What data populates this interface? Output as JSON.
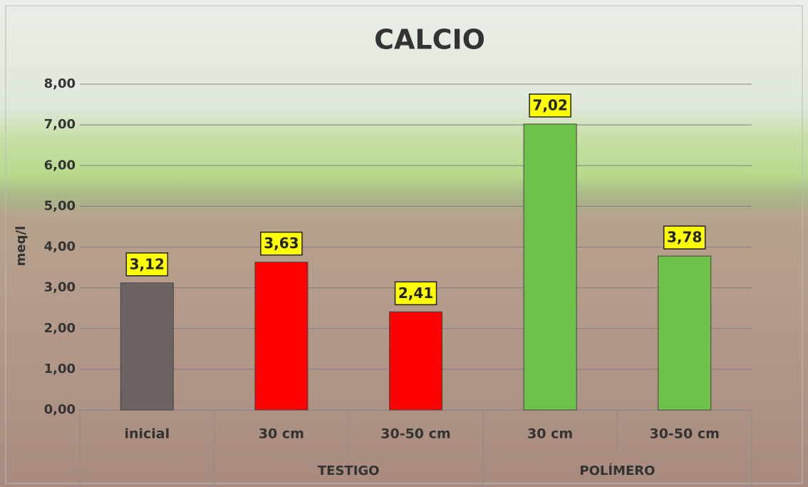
{
  "chart_data": {
    "type": "bar",
    "title": "CALCIO",
    "y_label": "meq/l",
    "categories": [
      "inicial",
      "30 cm",
      "30-50 cm",
      "30 cm",
      "30-50 cm"
    ],
    "groups": [
      null,
      "TESTIGO",
      "TESTIGO",
      "POLÍMERO",
      "POLÍMERO"
    ],
    "values": [
      3.12,
      3.63,
      2.41,
      7.02,
      3.78
    ],
    "value_labels": [
      "3,12",
      "3,63",
      "2,41",
      "7,02",
      "3,78"
    ],
    "colors": [
      "#6b6262",
      "#ff0000",
      "#ff0000",
      "#6fc24a",
      "#6fc24a"
    ],
    "ylim": [
      0,
      8
    ],
    "yticks": [
      {
        "value": 0,
        "label": "0,00"
      },
      {
        "value": 1,
        "label": "1,00"
      },
      {
        "value": 2,
        "label": "2,00"
      },
      {
        "value": 3,
        "label": "3,00"
      },
      {
        "value": 4,
        "label": "4,00"
      },
      {
        "value": 5,
        "label": "5,00"
      },
      {
        "value": 6,
        "label": "6,00"
      },
      {
        "value": 7,
        "label": "7,00"
      },
      {
        "value": 8,
        "label": "8,00"
      }
    ],
    "grid": true
  }
}
